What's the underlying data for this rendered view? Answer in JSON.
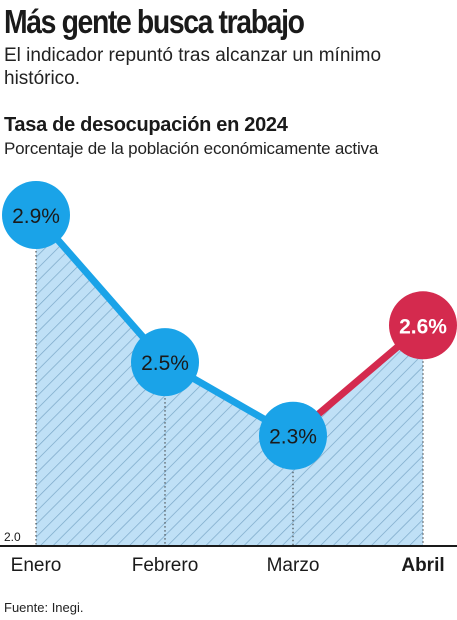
{
  "headline": "Más gente busca trabajo",
  "deck": "El indicador repuntó tras alcanzar un mínimo histórico.",
  "source": "Fuente: Inegi.",
  "colors": {
    "line": "#1aa3e8",
    "marker": "#1aa3e8",
    "highlight": "#d42a4e",
    "area_fill": "#bfe0f6",
    "hatch": "#7aa7c7",
    "baseline": "#1a1a1a"
  },
  "chart_data": {
    "type": "area",
    "title": "Tasa de desocupación en 2024",
    "subtitle": "Porcentaje de la población económicamente activa",
    "categories": [
      "Enero",
      "Febrero",
      "Marzo",
      "Abril"
    ],
    "series": [
      {
        "values": [
          2.9,
          2.5,
          2.3,
          2.6
        ],
        "data_labels": [
          "2.9%",
          "2.5%",
          "2.3%",
          "2.6%"
        ]
      }
    ],
    "highlight_index": 3,
    "y_baseline_label": "2.0",
    "ylim": [
      2.0,
      2.9
    ],
    "grid": false,
    "legend": "none"
  }
}
